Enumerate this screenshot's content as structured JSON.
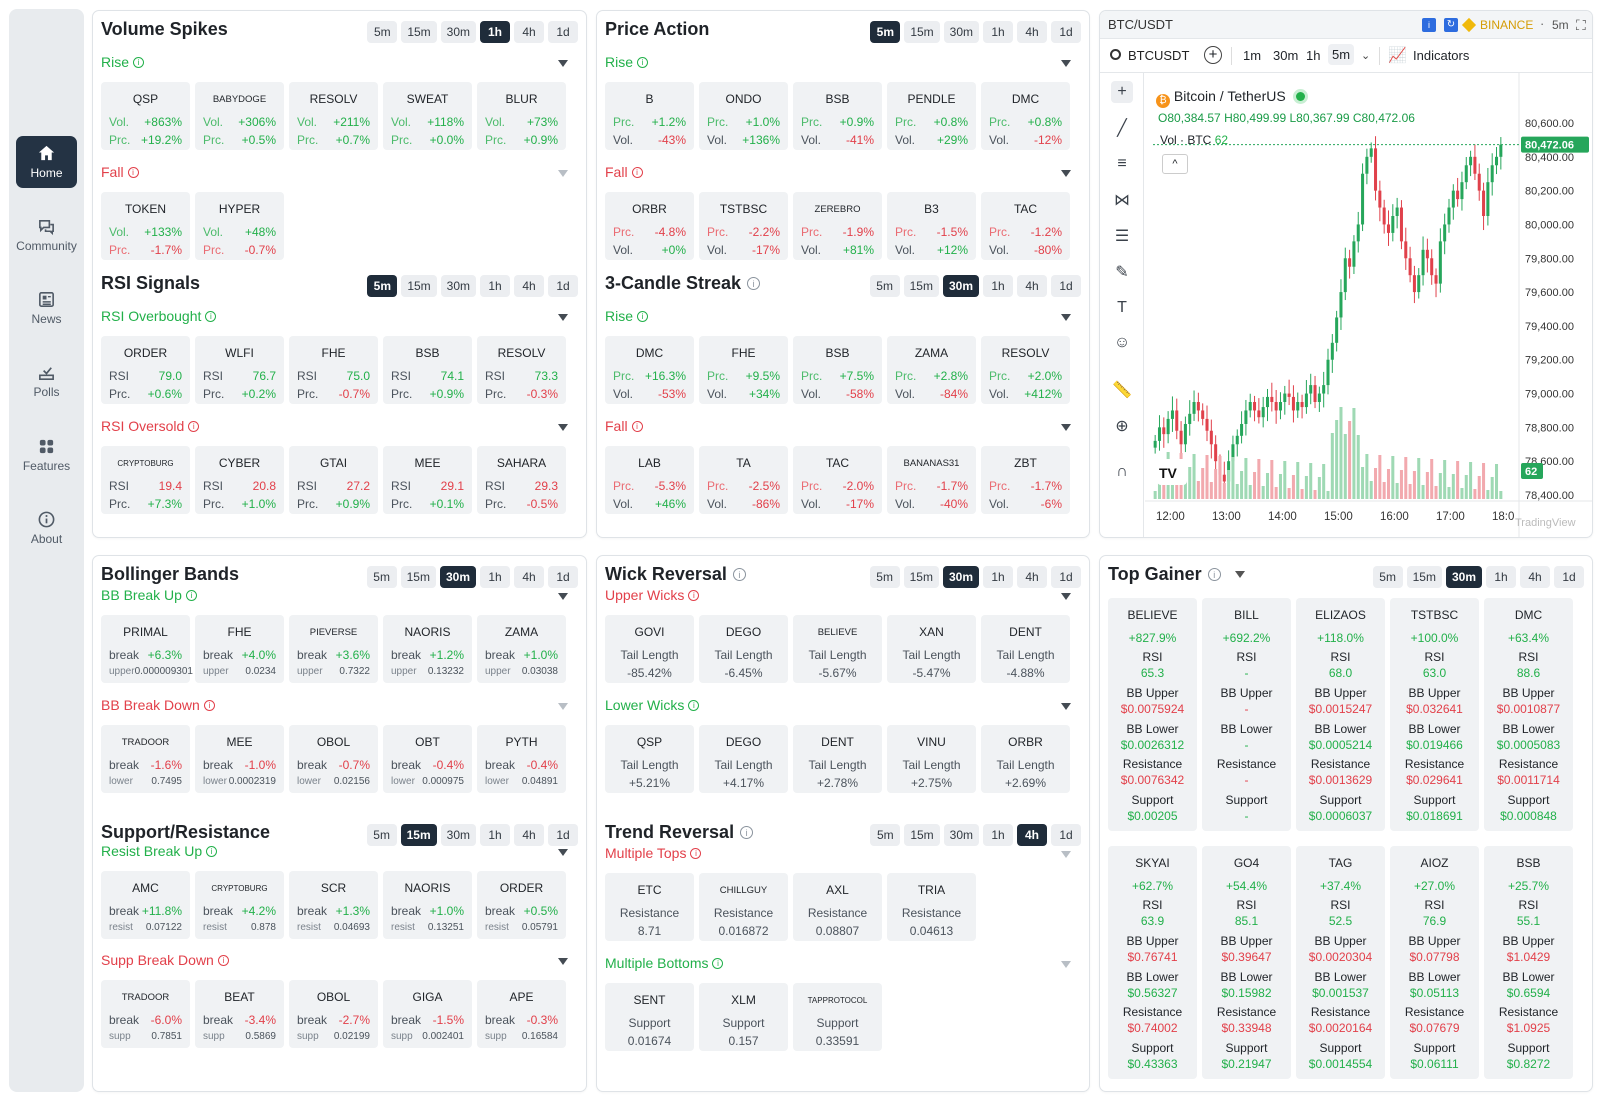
{
  "nav": [
    {
      "label": "Home",
      "icon": "home-icon"
    },
    {
      "label": "Community",
      "icon": "chat-icon"
    },
    {
      "label": "News",
      "icon": "news-icon"
    },
    {
      "label": "Polls",
      "icon": "poll-icon"
    },
    {
      "label": "Features",
      "icon": "grid-icon"
    },
    {
      "label": "About",
      "icon": "info-icon"
    }
  ],
  "tfs": [
    "5m",
    "15m",
    "30m",
    "1h",
    "4h",
    "1d"
  ],
  "volume": {
    "title": "Volume Spikes",
    "active": "1h",
    "rise": {
      "label": "Rise",
      "cards": [
        {
          "name": "QSP",
          "l1": "Vol.",
          "v1": "+863%",
          "l2": "Prc.",
          "v2": "+19.2%"
        },
        {
          "name": "BABYDOGE",
          "l1": "Vol.",
          "v1": "+306%",
          "l2": "Prc.",
          "v2": "+0.5%"
        },
        {
          "name": "RESOLV",
          "l1": "Vol.",
          "v1": "+211%",
          "l2": "Prc.",
          "v2": "+0.7%"
        },
        {
          "name": "SWEAT",
          "l1": "Vol.",
          "v1": "+118%",
          "l2": "Prc.",
          "v2": "+0.0%"
        },
        {
          "name": "BLUR",
          "l1": "Vol.",
          "v1": "+73%",
          "l2": "Prc.",
          "v2": "+0.9%"
        }
      ]
    },
    "fall": {
      "label": "Fall",
      "cards": [
        {
          "name": "TOKEN",
          "l1": "Vol.",
          "v1": "+133%",
          "l2": "Prc.",
          "v2": "-1.7%"
        },
        {
          "name": "HYPER",
          "l1": "Vol.",
          "v1": "+48%",
          "l2": "Prc.",
          "v2": "-0.7%"
        }
      ]
    }
  },
  "price": {
    "title": "Price Action",
    "active": "5m",
    "rise": {
      "label": "Rise",
      "cards": [
        {
          "name": "B",
          "l1": "Prc.",
          "v1": "+1.2%",
          "l2": "Vol.",
          "v2": "-43%"
        },
        {
          "name": "ONDO",
          "l1": "Prc.",
          "v1": "+1.0%",
          "l2": "Vol.",
          "v2": "+136%"
        },
        {
          "name": "BSB",
          "l1": "Prc.",
          "v1": "+0.9%",
          "l2": "Vol.",
          "v2": "-41%"
        },
        {
          "name": "PENDLE",
          "l1": "Prc.",
          "v1": "+0.8%",
          "l2": "Vol.",
          "v2": "+29%"
        },
        {
          "name": "DMC",
          "l1": "Prc.",
          "v1": "+0.8%",
          "l2": "Vol.",
          "v2": "-12%"
        }
      ]
    },
    "fall": {
      "label": "Fall",
      "cards": [
        {
          "name": "ORBR",
          "l1": "Prc.",
          "v1": "-4.8%",
          "l2": "Vol.",
          "v2": "+0%"
        },
        {
          "name": "TSTBSC",
          "l1": "Prc.",
          "v1": "-2.2%",
          "l2": "Vol.",
          "v2": "-17%"
        },
        {
          "name": "ZEREBRO",
          "l1": "Prc.",
          "v1": "-1.9%",
          "l2": "Vol.",
          "v2": "+81%"
        },
        {
          "name": "B3",
          "l1": "Prc.",
          "v1": "-1.5%",
          "l2": "Vol.",
          "v2": "+12%"
        },
        {
          "name": "TAC",
          "l1": "Prc.",
          "v1": "-1.2%",
          "l2": "Vol.",
          "v2": "-80%"
        }
      ]
    }
  },
  "rsi": {
    "title": "RSI Signals",
    "active": "5m",
    "rise": {
      "label": "RSI Overbought",
      "cards": [
        {
          "name": "ORDER",
          "l1": "RSI",
          "v1": "79.0",
          "l2": "Prc.",
          "v2": "+0.6%"
        },
        {
          "name": "WLFI",
          "l1": "RSI",
          "v1": "76.7",
          "l2": "Prc.",
          "v2": "+0.2%"
        },
        {
          "name": "FHE",
          "l1": "RSI",
          "v1": "75.0",
          "l2": "Prc.",
          "v2": "-0.7%"
        },
        {
          "name": "BSB",
          "l1": "RSI",
          "v1": "74.1",
          "l2": "Prc.",
          "v2": "+0.9%"
        },
        {
          "name": "RESOLV",
          "l1": "RSI",
          "v1": "73.3",
          "l2": "Prc.",
          "v2": "-0.3%"
        }
      ]
    },
    "fall": {
      "label": "RSI Oversold",
      "cards": [
        {
          "name": "CRYPTOBURG",
          "l1": "RSI",
          "v1": "19.4",
          "l2": "Prc.",
          "v2": "+7.3%"
        },
        {
          "name": "CYBER",
          "l1": "RSI",
          "v1": "20.8",
          "l2": "Prc.",
          "v2": "+1.0%"
        },
        {
          "name": "GTAI",
          "l1": "RSI",
          "v1": "27.2",
          "l2": "Prc.",
          "v2": "+0.9%"
        },
        {
          "name": "MEE",
          "l1": "RSI",
          "v1": "29.1",
          "l2": "Prc.",
          "v2": "+0.1%"
        },
        {
          "name": "SAHARA",
          "l1": "RSI",
          "v1": "29.3",
          "l2": "Prc.",
          "v2": "-0.5%"
        }
      ]
    }
  },
  "candle": {
    "title": "3-Candle Streak",
    "active": "30m",
    "rise": {
      "label": "Rise",
      "cards": [
        {
          "name": "DMC",
          "l1": "Prc.",
          "v1": "+16.3%",
          "l2": "Vol.",
          "v2": "-53%"
        },
        {
          "name": "FHE",
          "l1": "Prc.",
          "v1": "+9.5%",
          "l2": "Vol.",
          "v2": "+34%"
        },
        {
          "name": "BSB",
          "l1": "Prc.",
          "v1": "+7.5%",
          "l2": "Vol.",
          "v2": "-58%"
        },
        {
          "name": "ZAMA",
          "l1": "Prc.",
          "v1": "+2.8%",
          "l2": "Vol.",
          "v2": "-84%"
        },
        {
          "name": "RESOLV",
          "l1": "Prc.",
          "v1": "+2.0%",
          "l2": "Vol.",
          "v2": "+412%"
        }
      ]
    },
    "fall": {
      "label": "Fall",
      "cards": [
        {
          "name": "LAB",
          "l1": "Prc.",
          "v1": "-5.3%",
          "l2": "Vol.",
          "v2": "+46%"
        },
        {
          "name": "TA",
          "l1": "Prc.",
          "v1": "-2.5%",
          "l2": "Vol.",
          "v2": "-86%"
        },
        {
          "name": "TAC",
          "l1": "Prc.",
          "v1": "-2.0%",
          "l2": "Vol.",
          "v2": "-17%"
        },
        {
          "name": "BANANAS31",
          "l1": "Prc.",
          "v1": "-1.7%",
          "l2": "Vol.",
          "v2": "-40%"
        },
        {
          "name": "ZBT",
          "l1": "Prc.",
          "v1": "-1.7%",
          "l2": "Vol.",
          "v2": "-6%"
        }
      ]
    }
  },
  "bb": {
    "title": "Bollinger Bands",
    "active": "30m",
    "rise": {
      "label": "BB Break Up",
      "cards": [
        {
          "name": "PRIMAL",
          "l1": "break",
          "v1": "+6.3%",
          "l2": "upper",
          "v2": "0.000009301"
        },
        {
          "name": "FHE",
          "l1": "break",
          "v1": "+4.0%",
          "l2": "upper",
          "v2": "0.0234"
        },
        {
          "name": "PIEVERSE",
          "l1": "break",
          "v1": "+3.6%",
          "l2": "upper",
          "v2": "0.7322"
        },
        {
          "name": "NAORIS",
          "l1": "break",
          "v1": "+1.2%",
          "l2": "upper",
          "v2": "0.13232"
        },
        {
          "name": "ZAMA",
          "l1": "break",
          "v1": "+1.0%",
          "l2": "upper",
          "v2": "0.03038"
        }
      ]
    },
    "fall": {
      "label": "BB Break Down",
      "cards": [
        {
          "name": "TRADOOR",
          "l1": "break",
          "v1": "-1.6%",
          "l2": "lower",
          "v2": "0.7495"
        },
        {
          "name": "MEE",
          "l1": "break",
          "v1": "-1.0%",
          "l2": "lower",
          "v2": "0.0002319"
        },
        {
          "name": "OBOL",
          "l1": "break",
          "v1": "-0.7%",
          "l2": "lower",
          "v2": "0.02156"
        },
        {
          "name": "OBT",
          "l1": "break",
          "v1": "-0.4%",
          "l2": "lower",
          "v2": "0.000975"
        },
        {
          "name": "PYTH",
          "l1": "break",
          "v1": "-0.4%",
          "l2": "lower",
          "v2": "0.04891"
        }
      ]
    }
  },
  "sr": {
    "title": "Support/Resistance",
    "active": "15m",
    "rise": {
      "label": "Resist Break Up",
      "cards": [
        {
          "name": "AMC",
          "l1": "break",
          "v1": "+11.8%",
          "l2": "resist",
          "v2": "0.07122"
        },
        {
          "name": "CRYPTOBURG",
          "l1": "break",
          "v1": "+4.2%",
          "l2": "resist",
          "v2": "0.878"
        },
        {
          "name": "SCR",
          "l1": "break",
          "v1": "+1.3%",
          "l2": "resist",
          "v2": "0.04693"
        },
        {
          "name": "NAORIS",
          "l1": "break",
          "v1": "+1.0%",
          "l2": "resist",
          "v2": "0.13251"
        },
        {
          "name": "ORDER",
          "l1": "break",
          "v1": "+0.5%",
          "l2": "resist",
          "v2": "0.05791"
        }
      ]
    },
    "fall": {
      "label": "Supp Break Down",
      "cards": [
        {
          "name": "TRADOOR",
          "l1": "break",
          "v1": "-6.0%",
          "l2": "supp",
          "v2": "0.7851"
        },
        {
          "name": "BEAT",
          "l1": "break",
          "v1": "-3.4%",
          "l2": "supp",
          "v2": "0.5869"
        },
        {
          "name": "OBOL",
          "l1": "break",
          "v1": "-2.7%",
          "l2": "supp",
          "v2": "0.02199"
        },
        {
          "name": "GIGA",
          "l1": "break",
          "v1": "-1.5%",
          "l2": "supp",
          "v2": "0.002401"
        },
        {
          "name": "APE",
          "l1": "break",
          "v1": "-0.3%",
          "l2": "supp",
          "v2": "0.16584"
        }
      ]
    }
  },
  "wick": {
    "title": "Wick Reversal",
    "active": "30m",
    "upper": {
      "label": "Upper Wicks",
      "cards": [
        {
          "name": "GOVI",
          "lbl": "Tail Length",
          "val": "-85.42%"
        },
        {
          "name": "DEGO",
          "lbl": "Tail Length",
          "val": "-6.45%"
        },
        {
          "name": "BELIEVE",
          "lbl": "Tail Length",
          "val": "-5.67%"
        },
        {
          "name": "XAN",
          "lbl": "Tail Length",
          "val": "-5.47%"
        },
        {
          "name": "DENT",
          "lbl": "Tail Length",
          "val": "-4.88%"
        }
      ]
    },
    "lower": {
      "label": "Lower Wicks",
      "cards": [
        {
          "name": "QSP",
          "lbl": "Tail Length",
          "val": "+5.21%"
        },
        {
          "name": "DEGO",
          "lbl": "Tail Length",
          "val": "+4.17%"
        },
        {
          "name": "DENT",
          "lbl": "Tail Length",
          "val": "+2.78%"
        },
        {
          "name": "VINU",
          "lbl": "Tail Length",
          "val": "+2.75%"
        },
        {
          "name": "ORBR",
          "lbl": "Tail Length",
          "val": "+2.69%"
        }
      ]
    }
  },
  "trend": {
    "title": "Trend Reversal",
    "active": "4h",
    "tops": {
      "label": "Multiple Tops",
      "cards": [
        {
          "name": "ETC",
          "lbl": "Resistance",
          "val": "8.71"
        },
        {
          "name": "CHILLGUY",
          "lbl": "Resistance",
          "val": "0.016872"
        },
        {
          "name": "AXL",
          "lbl": "Resistance",
          "val": "0.08807"
        },
        {
          "name": "TRIA",
          "lbl": "Resistance",
          "val": "0.04613"
        }
      ]
    },
    "bottoms": {
      "label": "Multiple Bottoms",
      "cards": [
        {
          "name": "SENT",
          "lbl": "Support",
          "val": "0.01674"
        },
        {
          "name": "XLM",
          "lbl": "Support",
          "val": "0.157"
        },
        {
          "name": "TAPPROTOCOL",
          "lbl": "Support",
          "val": "0.33591"
        }
      ]
    }
  },
  "gainer": {
    "title": "Top Gainer",
    "active": "30m",
    "labels": {
      "rsi": "RSI",
      "bbu": "BB Upper",
      "bbl": "BB Lower",
      "res": "Resistance",
      "sup": "Support"
    },
    "cards": [
      {
        "name": "BELIEVE",
        "chg": "+827.9%",
        "rsi": "65.3",
        "bbu": "$0.0075924",
        "bbl": "$0.0026312",
        "res": "$0.0076342",
        "sup": "$0.00205"
      },
      {
        "name": "BILL",
        "chg": "+692.2%",
        "rsi": "-",
        "bbu": "-",
        "bbl": "-",
        "res": "-",
        "sup": "-"
      },
      {
        "name": "ELIZAOS",
        "chg": "+118.0%",
        "rsi": "68.0",
        "bbu": "$0.0015247",
        "bbl": "$0.0005214",
        "res": "$0.0013629",
        "sup": "$0.0006037"
      },
      {
        "name": "TSTBSC",
        "chg": "+100.0%",
        "rsi": "63.0",
        "bbu": "$0.032641",
        "bbl": "$0.019466",
        "res": "$0.029641",
        "sup": "$0.018691"
      },
      {
        "name": "DMC",
        "chg": "+63.4%",
        "rsi": "88.6",
        "bbu": "$0.0010877",
        "bbl": "$0.0005083",
        "res": "$0.0011714",
        "sup": "$0.000848"
      },
      {
        "name": "SKYAI",
        "chg": "+62.7%",
        "rsi": "63.9",
        "bbu": "$0.76741",
        "bbl": "$0.56327",
        "res": "$0.74002",
        "sup": "$0.43363"
      },
      {
        "name": "GO4",
        "chg": "+54.4%",
        "rsi": "85.1",
        "bbu": "$0.39647",
        "bbl": "$0.15982",
        "res": "$0.33948",
        "sup": "$0.21947"
      },
      {
        "name": "TAG",
        "chg": "+37.4%",
        "rsi": "52.5",
        "bbu": "$0.0020304",
        "bbl": "$0.001537",
        "res": "$0.0020164",
        "sup": "$0.0014554"
      },
      {
        "name": "AIOZ",
        "chg": "+27.0%",
        "rsi": "76.9",
        "bbu": "$0.07798",
        "bbl": "$0.05113",
        "res": "$0.07679",
        "sup": "$0.06111"
      },
      {
        "name": "BSB",
        "chg": "+25.7%",
        "rsi": "55.1",
        "bbu": "$1.0429",
        "bbl": "$0.6594",
        "res": "$1.0925",
        "sup": "$0.8272"
      }
    ]
  },
  "chart": {
    "pair": "BTC/USDT",
    "exchange": "BINANCE",
    "tf": "5m",
    "symbol": "BTCUSDT",
    "tfs": [
      "1m",
      "30m",
      "1h",
      "5m"
    ],
    "indicators": "Indicators",
    "title": "Bitcoin / TetherUS",
    "o": "80,384.57",
    "h": "80,499.99",
    "l": "80,367.99",
    "c": "80,472.06",
    "vol_label": "Vol · BTC",
    "vol_val": "62",
    "price_tag": "80,472.06",
    "vol_tag": "62",
    "watermark": "TradingView",
    "y_ticks": [
      "80,600.00",
      "80,400.00",
      "80,200.00",
      "80,000.00",
      "79,800.00",
      "79,600.00",
      "79,400.00",
      "79,200.00",
      "79,000.00",
      "78,800.00",
      "78,600.00",
      "78,400.00"
    ],
    "x_ticks": [
      "12:00",
      "13:00",
      "14:00",
      "15:00",
      "16:00",
      "17:00",
      "18:0"
    ]
  },
  "chart_data": {
    "type": "candlestick",
    "ylim": [
      78400,
      80600
    ],
    "last": 80472.06,
    "close": [
      78720,
      78800,
      78760,
      78850,
      78900,
      78780,
      78700,
      78820,
      78880,
      78950,
      78900,
      78850,
      78780,
      78700,
      78600,
      78520,
      78480,
      78600,
      78700,
      78750,
      78820,
      78900,
      78950,
      78900,
      78860,
      78920,
      78980,
      78950,
      78900,
      78950,
      79000,
      78980,
      78900,
      78950,
      78920,
      79000,
      79050,
      78950,
      79000,
      79050,
      79200,
      79300,
      79450,
      79600,
      79800,
      79750,
      79900,
      80000,
      80300,
      80400,
      80450,
      80200,
      80100,
      80000,
      79950,
      80050,
      80100,
      79900,
      79800,
      79700,
      79600,
      79700,
      79850,
      79800,
      79700,
      79650,
      79900,
      80000,
      80100,
      80200,
      80150,
      80250,
      80350,
      80400,
      80300,
      80200,
      80050,
      80250,
      80350,
      80400,
      80472
    ]
  }
}
